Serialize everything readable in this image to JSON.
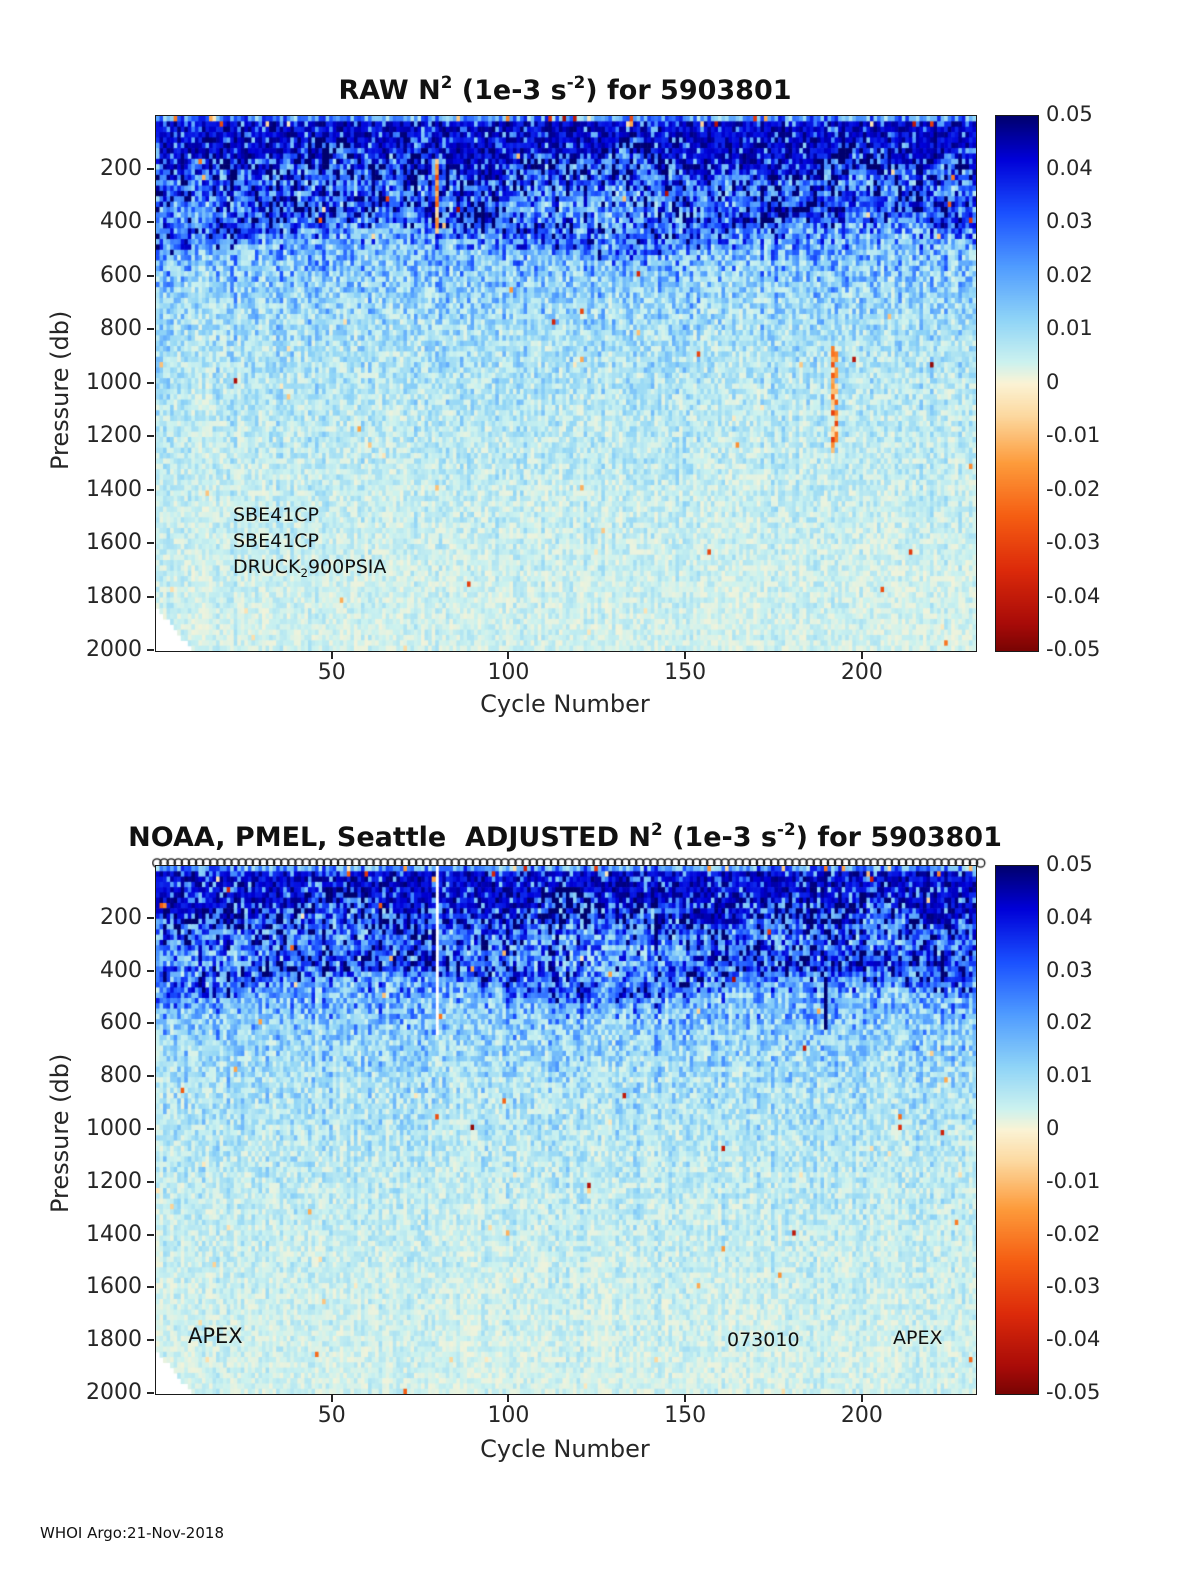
{
  "page": {
    "footer_text": "WHOI Argo:21-Nov-2018",
    "background": "#ffffff"
  },
  "colormap": {
    "stops": [
      [
        0.05,
        "#00006e"
      ],
      [
        0.042,
        "#0000d8"
      ],
      [
        0.032,
        "#1a50ff"
      ],
      [
        0.022,
        "#4f9bff"
      ],
      [
        0.012,
        "#8fd4f7"
      ],
      [
        0.004,
        "#ccf2ef"
      ],
      [
        0.0,
        "#fbf3d5"
      ],
      [
        -0.006,
        "#fcd9a0"
      ],
      [
        -0.015,
        "#fd9b3b"
      ],
      [
        -0.025,
        "#f55d12"
      ],
      [
        -0.035,
        "#dc2a0a"
      ],
      [
        -0.045,
        "#a80b08"
      ],
      [
        -0.05,
        "#7a0403"
      ]
    ]
  },
  "chart_data": [
    {
      "type": "heatmap",
      "title": "RAW N^2 (1e-3 s^-2) for 5903801",
      "title_parts": [
        "RAW N",
        "2",
        " (1e-3 s",
        "-2",
        ") for 5903801"
      ],
      "xlabel": "Cycle Number",
      "ylabel": "Pressure (db)",
      "x_range": [
        1,
        232
      ],
      "x_ticks": [
        50,
        100,
        150,
        200
      ],
      "y_range": [
        0,
        2000
      ],
      "y_axis_reversed": true,
      "y_ticks": [
        200,
        400,
        600,
        800,
        1000,
        1200,
        1400,
        1600,
        1800,
        2000
      ],
      "clim": [
        -0.05,
        0.05
      ],
      "colorbar_ticks": [
        "0.05",
        "0.04",
        "0.03",
        "0.02",
        "0.01",
        "0",
        "-0.01",
        "-0.02",
        "-0.03",
        "-0.04",
        "-0.05"
      ],
      "annotations": [
        {
          "text": "SBE41CP"
        },
        {
          "text": "SBE41CP"
        },
        {
          "parts": [
            "DRUCK",
            "2",
            "900PSIA"
          ]
        }
      ],
      "field_model": {
        "seed": 42,
        "cycles": 232,
        "p_bin": 20,
        "profile": [
          [
            0,
            0.046
          ],
          [
            80,
            0.047
          ],
          [
            160,
            0.034
          ],
          [
            260,
            0.027
          ],
          [
            380,
            0.024
          ],
          [
            520,
            0.017
          ],
          [
            680,
            0.012
          ],
          [
            850,
            0.009
          ],
          [
            1100,
            0.007
          ],
          [
            1400,
            0.0055
          ],
          [
            1700,
            0.0045
          ],
          [
            2000,
            0.004
          ]
        ],
        "surface_band": {
          "base": 130,
          "amp1": 55,
          "freq1": 0.085,
          "amp2": 35,
          "freq2": 0.21,
          "phase2": 1.3,
          "rand": 30,
          "trend": 0.15,
          "value": 0.036,
          "value_rand": 0.014,
          "hole_prob": 0.12
        },
        "mid_band": {
          "center": 390,
          "amp": 70,
          "freq": 0.045,
          "phase": 2,
          "halfwidth": 90,
          "strength": 0.018
        },
        "neg_speckle": {
          "prob_deep": 0.0035,
          "prob_surface": 0.05,
          "surface_p": 50
        },
        "missing_wedge": {
          "cycles": 10,
          "p0": 1840,
          "slope": 16
        },
        "anomalies": [
          {
            "c0": 80,
            "c1": 80,
            "p0": 160,
            "p1": 430,
            "mode": "value",
            "value": -0.018,
            "jitter": 0.025
          },
          {
            "c0": 192,
            "c1": 193,
            "p0": 860,
            "p1": 1260,
            "mode": "value",
            "value": -0.008,
            "jitter": 0.05
          }
        ]
      },
      "top_markers": false
    },
    {
      "type": "heatmap",
      "title": "NOAA, PMEL, Seattle  ADJUSTED N^2 (1e-3 s^-2) for 5903801",
      "title_parts": [
        "NOAA, PMEL, Seattle  ADJUSTED N",
        "2",
        " (1e-3 s",
        "-2",
        ") for 5903801"
      ],
      "xlabel": "Cycle Number",
      "ylabel": "Pressure (db)",
      "x_range": [
        1,
        232
      ],
      "x_ticks": [
        50,
        100,
        150,
        200
      ],
      "y_range": [
        0,
        2000
      ],
      "y_axis_reversed": true,
      "y_ticks": [
        200,
        400,
        600,
        800,
        1000,
        1200,
        1400,
        1600,
        1800,
        2000
      ],
      "clim": [
        -0.05,
        0.05
      ],
      "colorbar_ticks": [
        "0.05",
        "0.04",
        "0.03",
        "0.02",
        "0.01",
        "0",
        "-0.01",
        "-0.02",
        "-0.03",
        "-0.04",
        "-0.05"
      ],
      "annotations": [
        {
          "text": "APEX"
        },
        {
          "text": "073010"
        },
        {
          "text": "APEX"
        }
      ],
      "field_model": {
        "seed": 7,
        "cycles": 232,
        "p_bin": 20,
        "profile": [
          [
            0,
            0.046
          ],
          [
            80,
            0.047
          ],
          [
            160,
            0.034
          ],
          [
            260,
            0.027
          ],
          [
            380,
            0.024
          ],
          [
            520,
            0.017
          ],
          [
            680,
            0.012
          ],
          [
            850,
            0.009
          ],
          [
            1100,
            0.007
          ],
          [
            1400,
            0.0055
          ],
          [
            1700,
            0.0045
          ],
          [
            2000,
            0.004
          ]
        ],
        "surface_band": {
          "base": 125,
          "amp1": 50,
          "freq1": 0.09,
          "amp2": 32,
          "freq2": 0.2,
          "phase2": 0.8,
          "rand": 30,
          "trend": 0.12,
          "value": 0.036,
          "value_rand": 0.014,
          "hole_prob": 0.13
        },
        "mid_band": {
          "center": 400,
          "amp": 65,
          "freq": 0.05,
          "phase": 1.6,
          "halfwidth": 95,
          "strength": 0.018
        },
        "neg_speckle": {
          "prob_deep": 0.003,
          "prob_surface": 0.05,
          "surface_p": 50
        },
        "missing_wedge": {
          "cycles": 10,
          "p0": 1840,
          "slope": 16
        },
        "anomalies": [
          {
            "c0": 80,
            "c1": 80,
            "p0": 0,
            "p1": 630,
            "mode": "blank"
          },
          {
            "c0": 190,
            "c1": 190,
            "p0": 430,
            "p1": 620,
            "mode": "value",
            "value": 0.05,
            "jitter": 0
          }
        ]
      },
      "top_markers": true
    }
  ]
}
